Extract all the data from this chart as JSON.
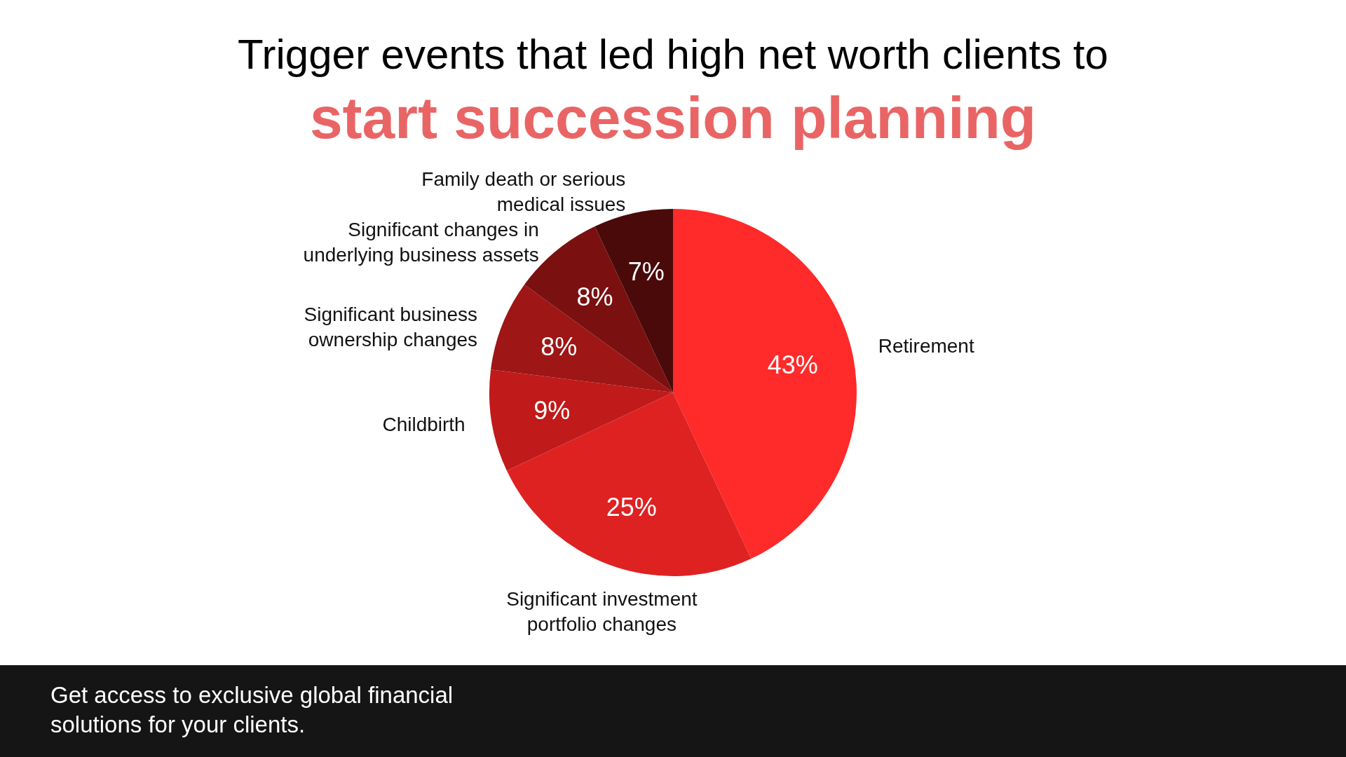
{
  "chart_data": {
    "type": "pie",
    "title": "Trigger events that led high net worth clients to",
    "subtitle": "start succession planning",
    "categories": [
      "Retirement",
      "Significant investment portfolio changes",
      "Childbirth",
      "Significant business ownership changes",
      "Significant changes in underlying business assets",
      "Family death or serious medical issues"
    ],
    "values": [
      43,
      25,
      9,
      8,
      8,
      7
    ],
    "value_labels": [
      "43%",
      "25%",
      "9%",
      "8%",
      "8%",
      "7%"
    ],
    "colors": [
      "#ff2a2a",
      "#de2222",
      "#c01a1a",
      "#9e1616",
      "#7a1010",
      "#4a0a0a"
    ],
    "annotations": [
      "Get access to exclusive global financial solutions for your clients."
    ]
  }
}
